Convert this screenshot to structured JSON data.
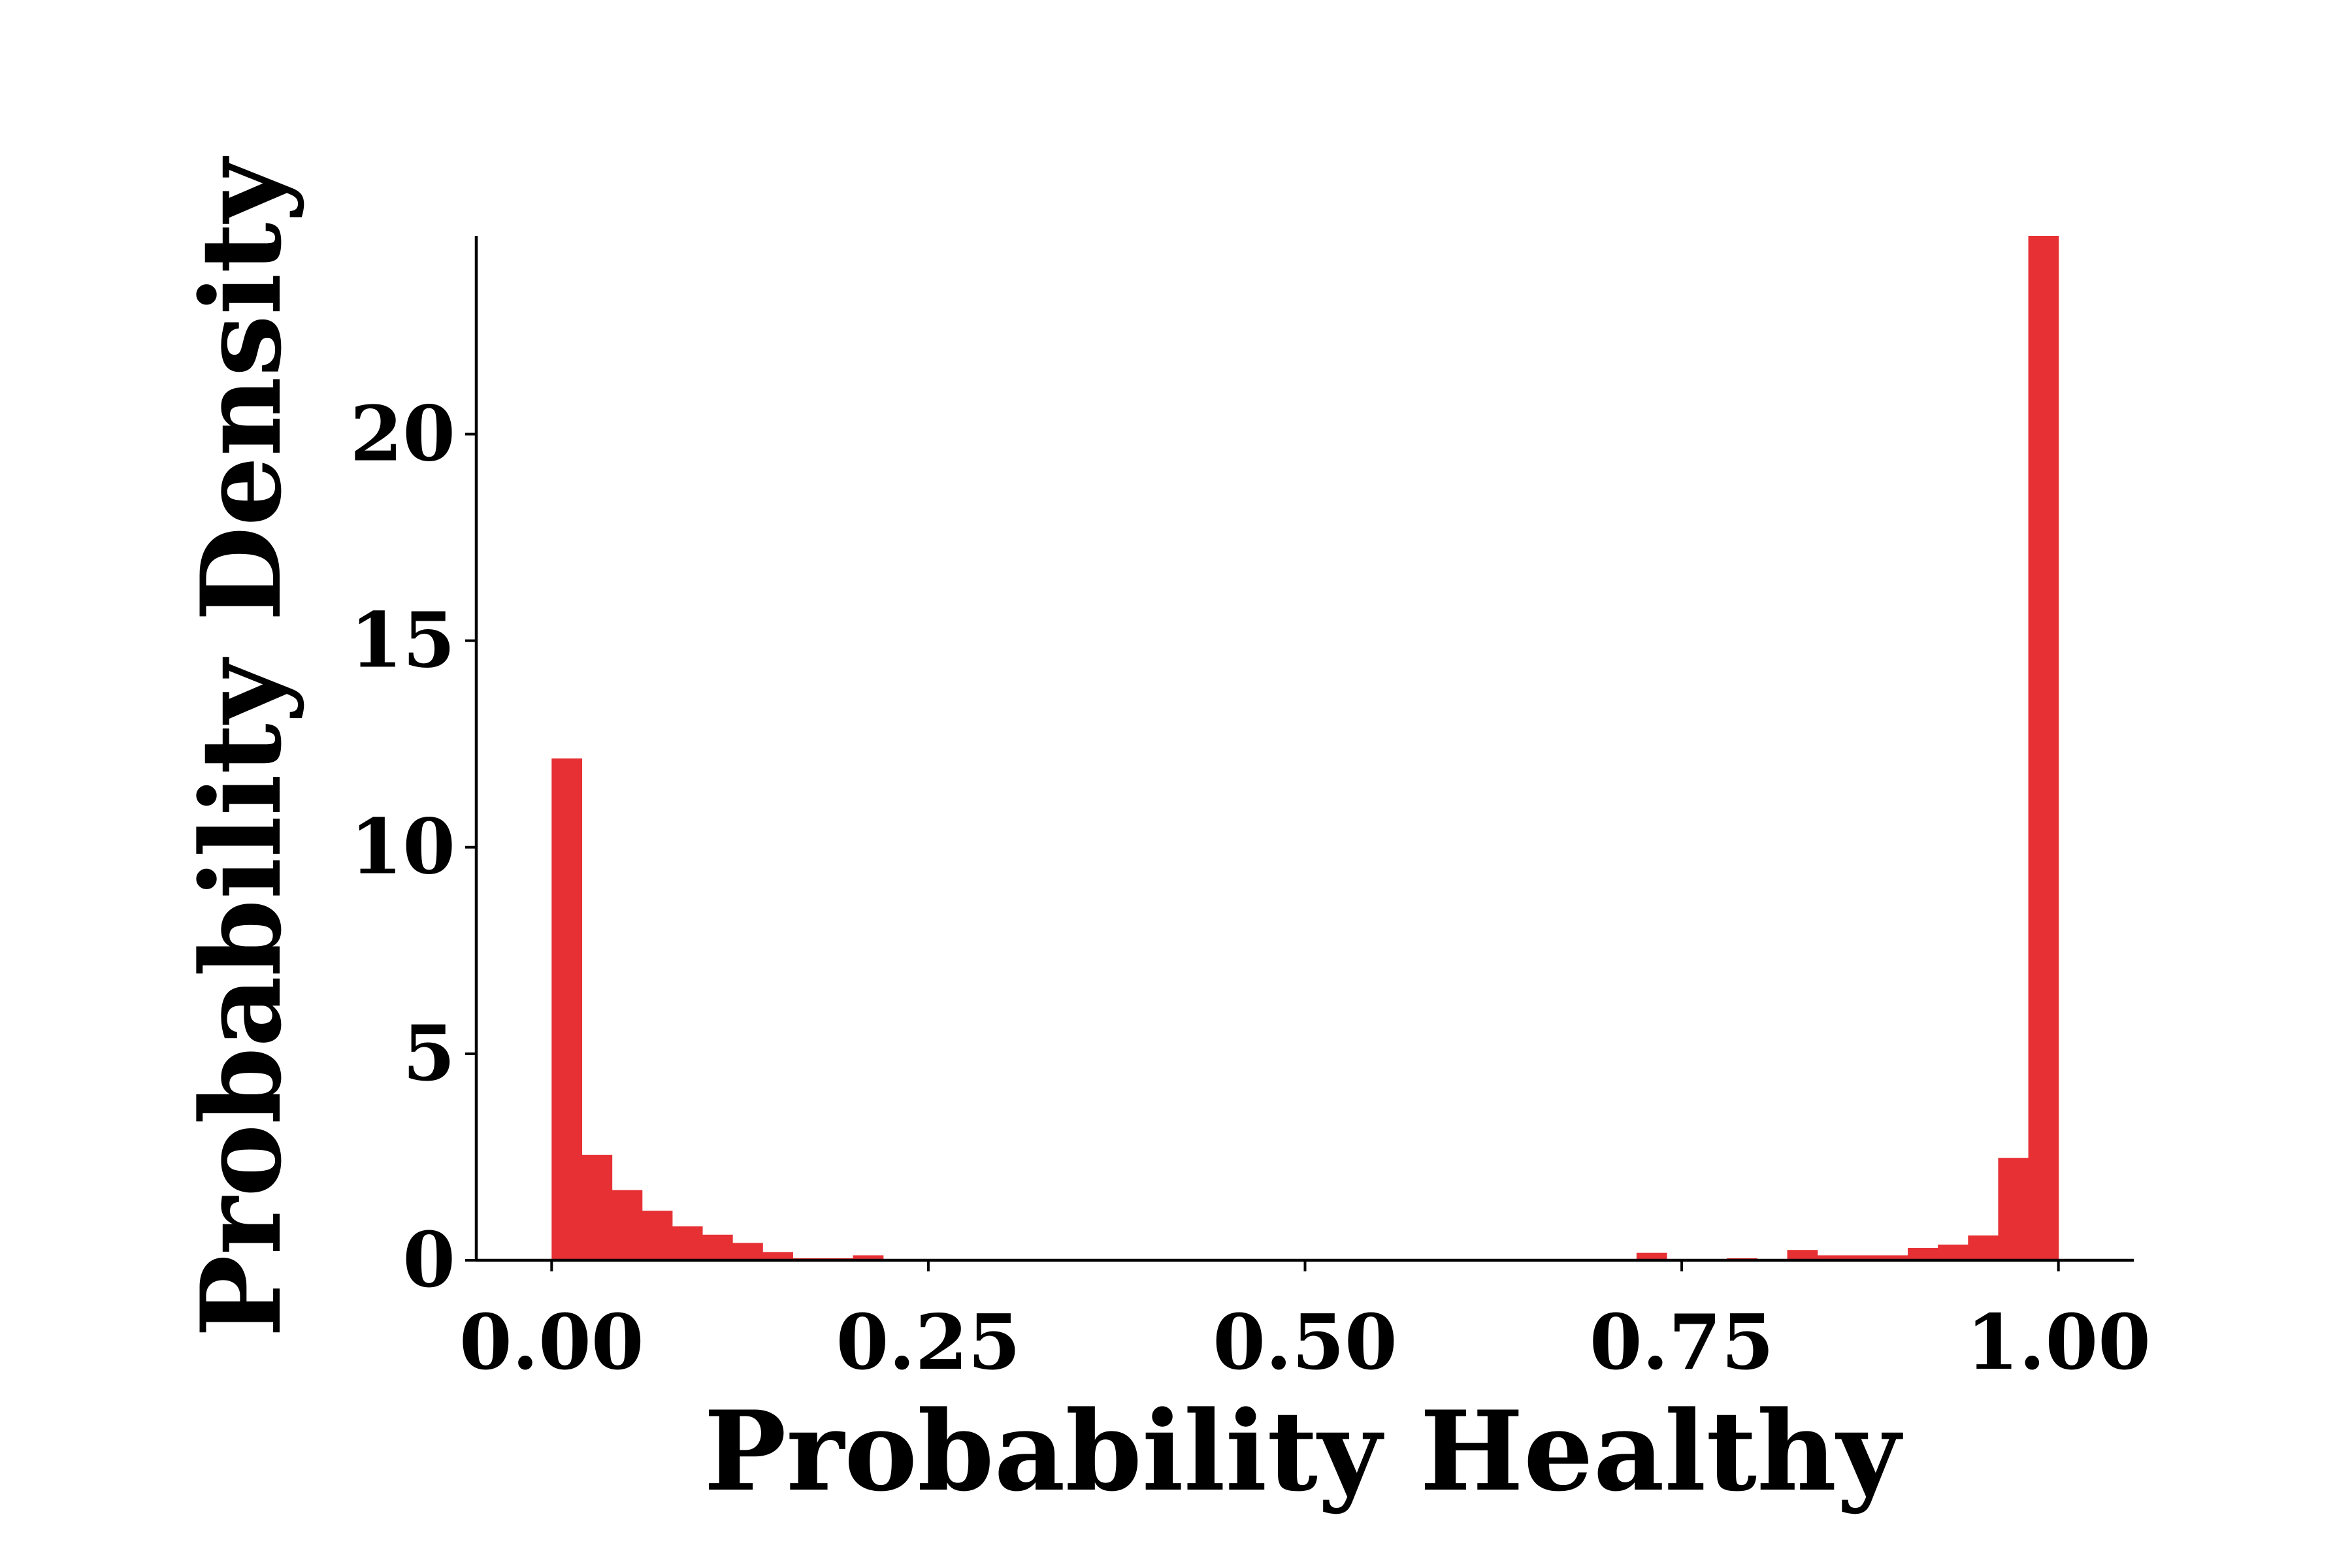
{
  "chart_data": {
    "type": "bar",
    "title": "",
    "xlabel": "Probability Healthy",
    "ylabel": "Probability Density",
    "xlim": [
      -0.05,
      1.05
    ],
    "ylim": [
      0,
      24.8
    ],
    "bin_width": 0.02,
    "xticks": [
      0.0,
      0.25,
      0.5,
      0.75,
      1.0
    ],
    "xtick_labels": [
      "0.00",
      "0.25",
      "0.50",
      "0.75",
      "1.00"
    ],
    "yticks": [
      0,
      5,
      10,
      15,
      20
    ],
    "ytick_labels": [
      "0",
      "5",
      "10",
      "15",
      "20"
    ],
    "bar_color": "#e63034",
    "grid": false,
    "legend": "none",
    "series": [
      {
        "bins_left": [
          0.0,
          0.02,
          0.04,
          0.06,
          0.08,
          0.1,
          0.12,
          0.14,
          0.16,
          0.18,
          0.2,
          0.22,
          0.24,
          0.26,
          0.28,
          0.3,
          0.32,
          0.34,
          0.36,
          0.38,
          0.4,
          0.42,
          0.44,
          0.46,
          0.48,
          0.5,
          0.52,
          0.54,
          0.56,
          0.58,
          0.6,
          0.62,
          0.64,
          0.66,
          0.68,
          0.7,
          0.72,
          0.74,
          0.76,
          0.78,
          0.8,
          0.82,
          0.84,
          0.86,
          0.88,
          0.9,
          0.92,
          0.94,
          0.96,
          0.98
        ],
        "values": [
          12.15,
          2.55,
          1.7,
          1.2,
          0.82,
          0.62,
          0.42,
          0.2,
          0.05,
          0.05,
          0.12,
          0.02,
          0.0,
          0.0,
          0.0,
          0.0,
          0.0,
          0.0,
          0.0,
          0.0,
          0.0,
          0.0,
          0.0,
          0.0,
          0.0,
          0.0,
          0.0,
          0.0,
          0.03,
          0.0,
          0.0,
          0.03,
          0.0,
          0.03,
          0.0,
          0.0,
          0.18,
          0.0,
          0.0,
          0.05,
          0.0,
          0.25,
          0.12,
          0.12,
          0.12,
          0.3,
          0.38,
          0.6,
          2.48,
          24.8
        ]
      }
    ]
  }
}
